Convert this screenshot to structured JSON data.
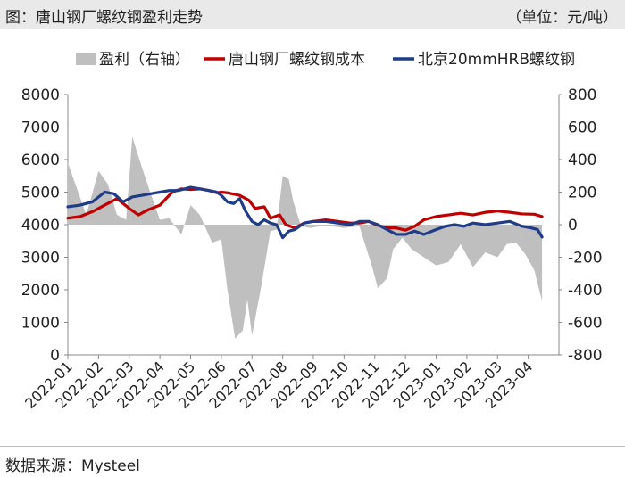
{
  "header": {
    "title": "图：唐山钢厂螺纹钢盈利走势",
    "unit": "（单位：元/吨）"
  },
  "footer": {
    "source": "数据来源：Mysteel"
  },
  "colors": {
    "profit": "#bfbfbf",
    "cost": "#c00000",
    "price": "#1f3c88",
    "axis": "#888888"
  },
  "chart_data": {
    "type": "line",
    "title": "",
    "xlabel": "",
    "ylabel": "",
    "x_ticks": [
      "2022-01",
      "2022-02",
      "2022-03",
      "2022-04",
      "2022-05",
      "2022-06",
      "2022-07",
      "2022-08",
      "2022-09",
      "2022-10",
      "2022-11",
      "2022-12",
      "2023-01",
      "2023-02",
      "2023-03",
      "2023-04"
    ],
    "y_left": {
      "min": 0,
      "max": 8000,
      "ticks": [
        0,
        1000,
        2000,
        3000,
        4000,
        5000,
        6000,
        7000,
        8000
      ]
    },
    "y_right": {
      "min": -800,
      "max": 800,
      "ticks": [
        -800,
        -600,
        -400,
        -200,
        0,
        200,
        400,
        600,
        800
      ]
    },
    "legend_position": "top",
    "series": [
      {
        "name": "盈利（右轴）",
        "type": "area",
        "axis": "right",
        "color": "#bfbfbf",
        "x": [
          0,
          0.3,
          0.6,
          1.0,
          1.3,
          1.6,
          1.9,
          2.1,
          2.4,
          2.7,
          3.0,
          3.3,
          3.7,
          4.0,
          4.3,
          4.7,
          5.0,
          5.2,
          5.45,
          5.7,
          5.85,
          6.0,
          6.3,
          6.6,
          6.8,
          7.0,
          7.2,
          7.35,
          7.6,
          7.9,
          8.2,
          8.6,
          9.0,
          9.5,
          9.9,
          10.1,
          10.4,
          10.6,
          10.9,
          11.2,
          11.6,
          12.0,
          12.4,
          12.8,
          13.2,
          13.6,
          14.0,
          14.3,
          14.6,
          14.9,
          15.2,
          15.45
        ],
        "y": [
          380,
          220,
          60,
          330,
          250,
          60,
          30,
          540,
          360,
          190,
          30,
          40,
          -60,
          120,
          60,
          -110,
          -90,
          -400,
          -700,
          -650,
          -460,
          -680,
          -380,
          -40,
          -30,
          300,
          280,
          140,
          -10,
          -20,
          -10,
          -10,
          -20,
          -10,
          -250,
          -390,
          -330,
          -150,
          -80,
          -150,
          -200,
          -250,
          -230,
          -120,
          -260,
          -170,
          -200,
          -120,
          -110,
          -180,
          -280,
          -470
        ]
      },
      {
        "name": "唐山钢厂螺纹钢成本",
        "type": "line",
        "axis": "left",
        "color": "#c00000",
        "x": [
          0,
          0.4,
          0.8,
          1.2,
          1.6,
          2.0,
          2.3,
          2.6,
          3.0,
          3.4,
          3.7,
          4.0,
          4.3,
          4.6,
          4.85,
          5.0,
          5.2,
          5.6,
          5.9,
          6.1,
          6.4,
          6.6,
          6.9,
          7.1,
          7.4,
          7.7,
          8.0,
          8.4,
          8.8,
          9.2,
          9.5,
          9.8,
          10.1,
          10.4,
          10.7,
          11.0,
          11.3,
          11.6,
          12.0,
          12.4,
          12.8,
          13.2,
          13.6,
          14.0,
          14.4,
          14.8,
          15.2,
          15.45
        ],
        "y": [
          4200,
          4250,
          4400,
          4600,
          4800,
          4500,
          4300,
          4450,
          4600,
          5000,
          5100,
          5080,
          5100,
          5050,
          4980,
          5000,
          4980,
          4900,
          4750,
          4500,
          4550,
          4200,
          4300,
          4000,
          3900,
          4050,
          4100,
          4150,
          4100,
          4050,
          4050,
          4100,
          3980,
          3900,
          3900,
          3830,
          3950,
          4150,
          4250,
          4300,
          4350,
          4300,
          4380,
          4420,
          4380,
          4330,
          4320,
          4250
        ]
      },
      {
        "name": "北京20mmHRB螺纹钢",
        "type": "line",
        "axis": "left",
        "color": "#1f3c88",
        "x": [
          0,
          0.4,
          0.8,
          1.2,
          1.5,
          1.8,
          2.1,
          2.4,
          2.7,
          3.0,
          3.3,
          3.6,
          4.0,
          4.3,
          4.6,
          4.85,
          5.0,
          5.2,
          5.4,
          5.6,
          5.8,
          6.0,
          6.2,
          6.4,
          6.6,
          6.8,
          7.0,
          7.2,
          7.4,
          7.7,
          8.0,
          8.4,
          8.8,
          9.2,
          9.5,
          9.8,
          10.1,
          10.4,
          10.7,
          11.0,
          11.3,
          11.6,
          12.0,
          12.3,
          12.6,
          12.9,
          13.2,
          13.6,
          14.0,
          14.4,
          14.8,
          15.1,
          15.3,
          15.45
        ],
        "y": [
          4550,
          4600,
          4700,
          5000,
          4950,
          4700,
          4850,
          4900,
          4950,
          5000,
          5050,
          5050,
          5150,
          5100,
          5050,
          5000,
          4900,
          4700,
          4650,
          4800,
          4400,
          4100,
          4000,
          4150,
          4050,
          4000,
          3600,
          3800,
          3850,
          4050,
          4100,
          4100,
          4050,
          4000,
          4100,
          4100,
          4000,
          3850,
          3700,
          3700,
          3800,
          3700,
          3850,
          3950,
          4000,
          3950,
          4050,
          4000,
          4050,
          4100,
          3950,
          3900,
          3850,
          3620
        ]
      }
    ]
  }
}
